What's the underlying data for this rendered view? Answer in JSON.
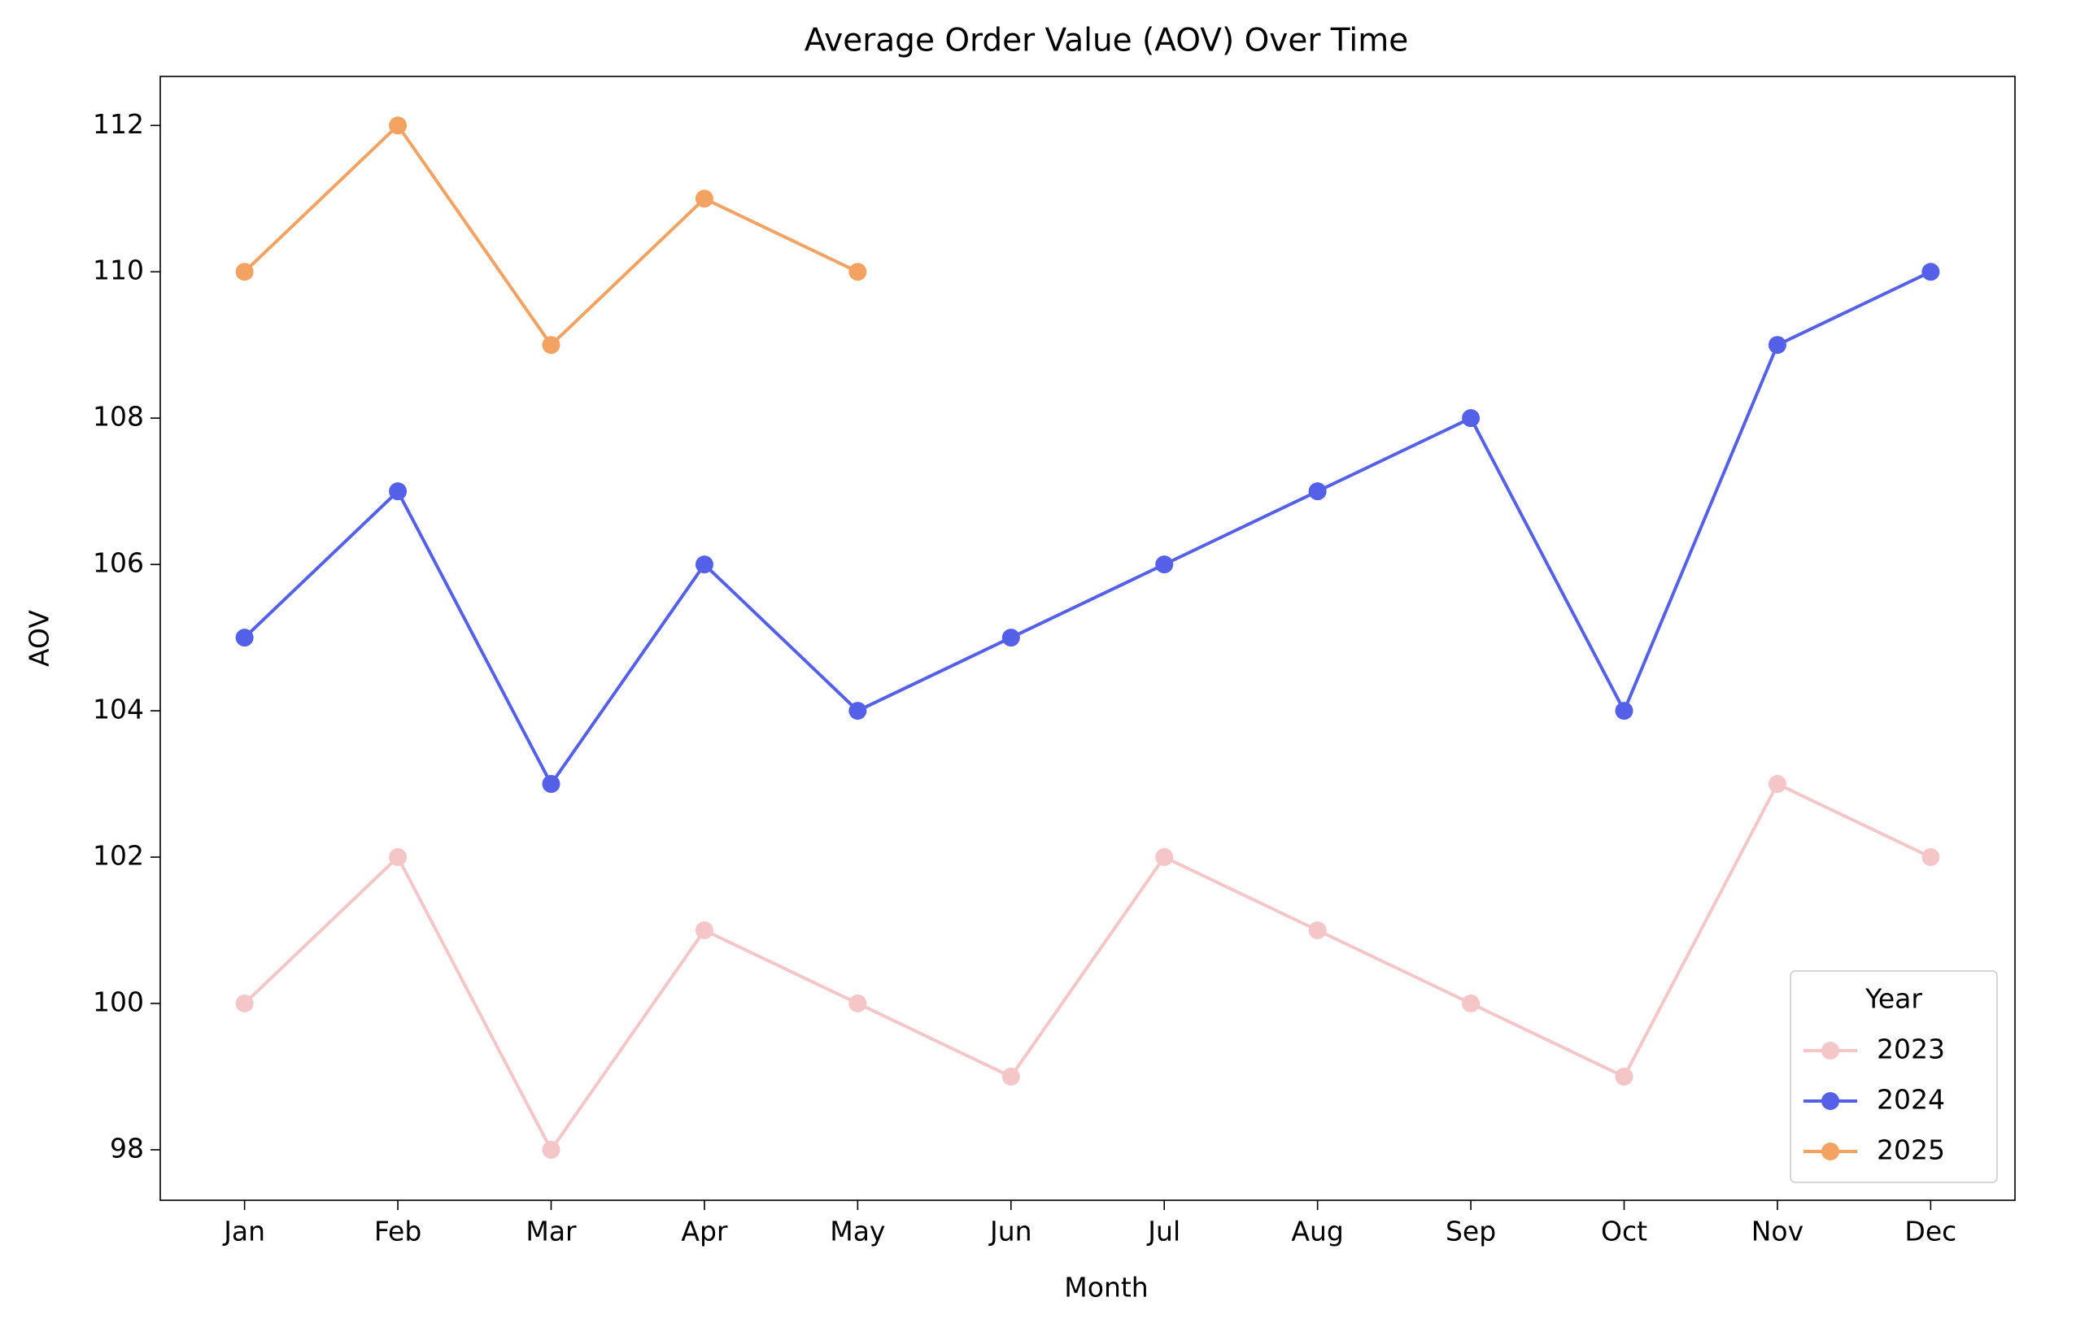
{
  "chart_data": {
    "type": "line",
    "title": "Average Order Value (AOV) Over Time",
    "x_label": "Month",
    "y_label": "AOV",
    "categories": [
      "Jan",
      "Feb",
      "Mar",
      "Apr",
      "May",
      "Jun",
      "Jul",
      "Aug",
      "Sep",
      "Oct",
      "Nov",
      "Dec"
    ],
    "series": [
      {
        "name": "2023",
        "color": "#f4c6c8",
        "values": [
          100,
          102,
          98,
          101,
          100,
          99,
          102,
          101,
          100,
          99,
          103,
          102
        ]
      },
      {
        "name": "2024",
        "color": "#5560e8",
        "values": [
          105,
          107,
          103,
          106,
          104,
          105,
          106,
          107,
          108,
          104,
          109,
          110
        ]
      },
      {
        "name": "2025",
        "color": "#f4a261",
        "values": [
          110,
          112,
          109,
          111,
          110,
          null,
          null,
          null,
          null,
          null,
          null,
          null
        ]
      }
    ],
    "ylim": [
      97.31,
      112.67
    ],
    "yticks": [
      98,
      100,
      102,
      104,
      106,
      108,
      110,
      112
    ],
    "legend_title": "Year",
    "legend": "lower right",
    "grid": false
  }
}
